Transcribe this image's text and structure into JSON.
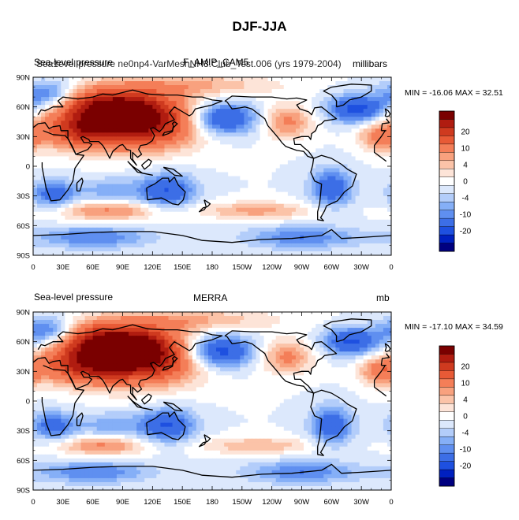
{
  "figure_title": "DJF-JJA",
  "colors": {
    "levels": [
      "#000080",
      "#0020c0",
      "#1e50e0",
      "#3c6ee6",
      "#5f8ff0",
      "#85aff7",
      "#b3cdfa",
      "#dce8fc",
      "#ffffff",
      "#fde4d8",
      "#fbc3a8",
      "#f8a17e",
      "#f47e58",
      "#e85a36",
      "#cf3a1f",
      "#b01c10",
      "#7a0000"
    ]
  },
  "panels": [
    {
      "left_title": "Sea-level pressure",
      "center_title": "F_AMIP_CAM5",
      "overlay_title": "Sea1evel pressure ne0np4-VarMeshNH3.Club_Test.006 (yrs 1979-2004)",
      "right_title": "millibars",
      "stats": "MIN = -16.06 MAX =  32.51"
    },
    {
      "left_title": "Sea-level pressure",
      "center_title": "MERRA",
      "right_title": "mb",
      "stats": "MIN = -17.10 MAX =  34.59"
    }
  ],
  "chart_data": {
    "type": "heatmap",
    "title": "DJF-JJA",
    "variable": "Sea-level pressure",
    "x_ticks": [
      "0",
      "30E",
      "60E",
      "90E",
      "120E",
      "150E",
      "180",
      "150W",
      "120W",
      "90W",
      "60W",
      "30W",
      "0"
    ],
    "y_ticks": [
      "90N",
      "60N",
      "30N",
      "0",
      "30S",
      "60S",
      "90S"
    ],
    "xlim": [
      0,
      360
    ],
    "ylim": [
      -90,
      90
    ],
    "colorbar_levels": [
      -24,
      -22,
      -20,
      -18,
      -16,
      -12,
      -8,
      -4,
      0,
      4,
      8,
      12,
      16,
      18,
      20,
      22,
      24
    ],
    "colorbar_labels": [
      "20",
      "10",
      "4",
      "0",
      "-4",
      "-10",
      "-20"
    ],
    "maps": [
      {
        "name": "F_AMIP_CAM5",
        "min": -16.06,
        "max": 32.51,
        "features": [
          {
            "lon": 100,
            "lat": 45,
            "amp": 28,
            "sx": 45,
            "sy": 18
          },
          {
            "lon": 75,
            "lat": 62,
            "amp": 14,
            "sx": 35,
            "sy": 12
          },
          {
            "lon": 45,
            "lat": 35,
            "amp": 10,
            "sx": 25,
            "sy": 12
          },
          {
            "lon": 255,
            "lat": 45,
            "amp": 9,
            "sx": 18,
            "sy": 12
          },
          {
            "lon": 350,
            "lat": 30,
            "amp": 10,
            "sx": 15,
            "sy": 10
          },
          {
            "lon": 160,
            "lat": 82,
            "amp": 6,
            "sx": 60,
            "sy": 8
          },
          {
            "lon": 190,
            "lat": 48,
            "amp": -15,
            "sx": 25,
            "sy": 12
          },
          {
            "lon": 325,
            "lat": 58,
            "amp": -14,
            "sx": 20,
            "sy": 10
          },
          {
            "lon": 15,
            "lat": 72,
            "amp": -10,
            "sx": 20,
            "sy": 10
          },
          {
            "lon": 20,
            "lat": -28,
            "amp": -10,
            "sx": 15,
            "sy": 10
          },
          {
            "lon": 135,
            "lat": -25,
            "amp": -12,
            "sx": 20,
            "sy": 12
          },
          {
            "lon": 300,
            "lat": -22,
            "amp": -11,
            "sx": 15,
            "sy": 14
          },
          {
            "lon": 75,
            "lat": -25,
            "amp": -5,
            "sx": 25,
            "sy": 10
          },
          {
            "lon": 75,
            "lat": -45,
            "amp": 9,
            "sx": 35,
            "sy": 7
          },
          {
            "lon": 225,
            "lat": -45,
            "amp": 7,
            "sx": 40,
            "sy": 6
          },
          {
            "lon": 60,
            "lat": -72,
            "amp": -8,
            "sx": 40,
            "sy": 8
          },
          {
            "lon": 270,
            "lat": -72,
            "amp": -8,
            "sx": 40,
            "sy": 8
          }
        ]
      },
      {
        "name": "MERRA",
        "min": -17.1,
        "max": 34.59,
        "features": [
          {
            "lon": 100,
            "lat": 45,
            "amp": 30,
            "sx": 45,
            "sy": 18
          },
          {
            "lon": 75,
            "lat": 62,
            "amp": 14,
            "sx": 35,
            "sy": 12
          },
          {
            "lon": 45,
            "lat": 35,
            "amp": 10,
            "sx": 25,
            "sy": 12
          },
          {
            "lon": 255,
            "lat": 45,
            "amp": 9,
            "sx": 18,
            "sy": 12
          },
          {
            "lon": 350,
            "lat": 30,
            "amp": 10,
            "sx": 15,
            "sy": 10
          },
          {
            "lon": 160,
            "lat": 82,
            "amp": 6,
            "sx": 60,
            "sy": 8
          },
          {
            "lon": 185,
            "lat": 50,
            "amp": -17,
            "sx": 25,
            "sy": 12
          },
          {
            "lon": 320,
            "lat": 60,
            "amp": -13,
            "sx": 20,
            "sy": 10
          },
          {
            "lon": 15,
            "lat": 70,
            "amp": -11,
            "sx": 20,
            "sy": 10
          },
          {
            "lon": 20,
            "lat": -25,
            "amp": -10,
            "sx": 15,
            "sy": 10
          },
          {
            "lon": 135,
            "lat": -25,
            "amp": -12,
            "sx": 20,
            "sy": 12
          },
          {
            "lon": 300,
            "lat": -25,
            "amp": -11,
            "sx": 15,
            "sy": 14
          },
          {
            "lon": 75,
            "lat": -25,
            "amp": -5,
            "sx": 25,
            "sy": 10
          },
          {
            "lon": 70,
            "lat": -45,
            "amp": 9,
            "sx": 30,
            "sy": 7
          },
          {
            "lon": 225,
            "lat": -45,
            "amp": 6,
            "sx": 40,
            "sy": 6
          },
          {
            "lon": 60,
            "lat": -72,
            "amp": -8,
            "sx": 40,
            "sy": 8
          },
          {
            "lon": 270,
            "lat": -72,
            "amp": -8,
            "sx": 40,
            "sy": 8
          }
        ]
      }
    ]
  }
}
